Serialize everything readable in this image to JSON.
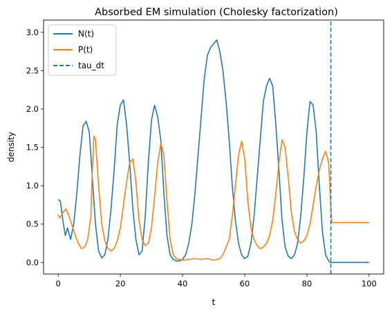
{
  "colors": {
    "N": "#1f77b4",
    "P": "#ff7f0e",
    "tau": "#1f77b4"
  },
  "chart_data": {
    "type": "line",
    "title": "Absorbed EM simulation (Cholesky factorization)",
    "xlabel": "t",
    "ylabel": "density",
    "xlim": [
      -4.7,
      104.7
    ],
    "ylim": [
      -0.15,
      3.16
    ],
    "x_ticks": [
      0,
      20,
      40,
      60,
      80,
      100
    ],
    "x_tick_labels": [
      "0",
      "20",
      "40",
      "60",
      "80",
      "100"
    ],
    "y_ticks": [
      0.0,
      0.5,
      1.0,
      1.5,
      2.0,
      2.5,
      3.0
    ],
    "y_tick_labels": [
      "0.0",
      "0.5",
      "1.0",
      "1.5",
      "2.0",
      "2.5",
      "3.0"
    ],
    "grid": false,
    "legend_position": "top-left",
    "series": [
      {
        "name": "N(t)",
        "style": "solid",
        "x": [
          0,
          0.7,
          1.5,
          2.3,
          3,
          4,
          5,
          6,
          7,
          8,
          9,
          10,
          11,
          12,
          13,
          14,
          15,
          16,
          17,
          18,
          19,
          20,
          21,
          22,
          23,
          24,
          25,
          26,
          27,
          28,
          29,
          30,
          31,
          32,
          33,
          34,
          35,
          36,
          37,
          38,
          39,
          40,
          41,
          42,
          43,
          44,
          45,
          46,
          47,
          48,
          49,
          50,
          51,
          52,
          53,
          54,
          55,
          56,
          57,
          58,
          59,
          60,
          61,
          62,
          63,
          64,
          65,
          66,
          67,
          68,
          69,
          70,
          71,
          72,
          73,
          74,
          75,
          76,
          77,
          78,
          79,
          80,
          81,
          82,
          83,
          84,
          85,
          86,
          87,
          87.5,
          88,
          90,
          95,
          100
        ],
        "y": [
          0.82,
          0.8,
          0.55,
          0.35,
          0.45,
          0.3,
          0.5,
          0.9,
          1.4,
          1.78,
          1.84,
          1.7,
          1.1,
          0.5,
          0.15,
          0.06,
          0.1,
          0.3,
          0.7,
          1.2,
          1.8,
          2.05,
          2.12,
          1.8,
          1.3,
          0.7,
          0.3,
          0.1,
          0.15,
          0.6,
          1.3,
          1.85,
          2.05,
          1.9,
          1.6,
          0.9,
          0.35,
          0.1,
          0.04,
          0.02,
          0.02,
          0.04,
          0.1,
          0.25,
          0.5,
          0.9,
          1.4,
          1.9,
          2.4,
          2.7,
          2.8,
          2.85,
          2.9,
          2.75,
          2.5,
          2.1,
          1.6,
          1.0,
          0.55,
          0.25,
          0.1,
          0.05,
          0.08,
          0.25,
          0.6,
          1.1,
          1.6,
          2.1,
          2.3,
          2.4,
          2.3,
          1.8,
          1.2,
          0.55,
          0.2,
          0.08,
          0.05,
          0.1,
          0.25,
          0.6,
          1.1,
          1.7,
          2.1,
          2.05,
          1.7,
          1.0,
          0.4,
          0.1,
          0.02,
          0.0,
          0.0,
          0.0,
          0.0,
          0.0
        ]
      },
      {
        "name": "P(t)",
        "style": "solid",
        "x": [
          0,
          0.5,
          1.5,
          2.5,
          3.5,
          4.5,
          5.5,
          6.5,
          7.5,
          8.5,
          9.5,
          10.5,
          11,
          11.5,
          12,
          13,
          14,
          15,
          16,
          17,
          18,
          19,
          20,
          21,
          22,
          23,
          24,
          25,
          26,
          27,
          28,
          29,
          30,
          31,
          32,
          33,
          34,
          35,
          36,
          37,
          38,
          39,
          40,
          42,
          44,
          46,
          48,
          50,
          52,
          53,
          54,
          55,
          56,
          57,
          58,
          59,
          60,
          61,
          62,
          63,
          64,
          65,
          66,
          67,
          68,
          69,
          70,
          71,
          72,
          73,
          74,
          75,
          76,
          77,
          78,
          79,
          80,
          81,
          82,
          83,
          84,
          85,
          86,
          87,
          87.6,
          88,
          90,
          95,
          100
        ],
        "y": [
          0.62,
          0.58,
          0.65,
          0.7,
          0.6,
          0.48,
          0.35,
          0.25,
          0.18,
          0.2,
          0.3,
          0.6,
          1.2,
          1.65,
          1.6,
          1.0,
          0.5,
          0.28,
          0.18,
          0.15,
          0.18,
          0.28,
          0.45,
          0.75,
          1.05,
          1.3,
          1.35,
          1.05,
          0.55,
          0.3,
          0.22,
          0.25,
          0.45,
          0.85,
          1.3,
          1.55,
          1.4,
          0.8,
          0.3,
          0.1,
          0.05,
          0.04,
          0.03,
          0.04,
          0.05,
          0.04,
          0.05,
          0.03,
          0.05,
          0.1,
          0.2,
          0.3,
          0.6,
          1.0,
          1.4,
          1.58,
          1.35,
          0.8,
          0.45,
          0.3,
          0.22,
          0.18,
          0.2,
          0.25,
          0.35,
          0.55,
          0.9,
          1.3,
          1.6,
          1.5,
          1.1,
          0.65,
          0.4,
          0.3,
          0.25,
          0.28,
          0.35,
          0.5,
          0.75,
          1.0,
          1.2,
          1.35,
          1.45,
          1.3,
          0.8,
          0.52,
          0.52,
          0.52,
          0.52
        ]
      },
      {
        "name": "tau_dt",
        "style": "dashed",
        "x": [
          87.7,
          87.7
        ],
        "y": [
          -0.15,
          3.16
        ]
      }
    ]
  }
}
